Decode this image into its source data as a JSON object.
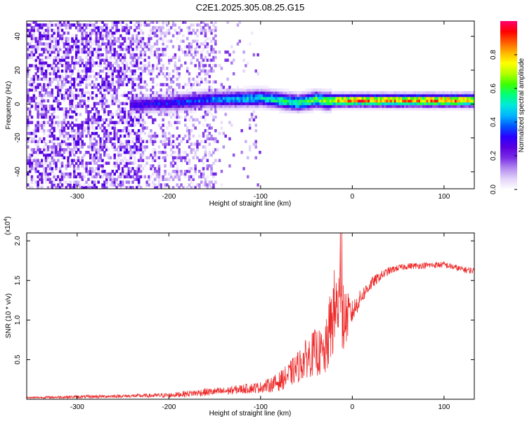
{
  "title": "C2E1.2025.305.08.25.G15",
  "chart_data": [
    {
      "type": "heatmap",
      "name": "spectrogram",
      "xlabel": "Height of straight line (km)",
      "ylabel": "Frequency (Hz)",
      "xlim": [
        -355,
        133
      ],
      "ylim": [
        -50,
        49
      ],
      "xticks": [
        -300,
        -200,
        -100,
        0,
        100
      ],
      "yticks": [
        -40,
        -20,
        0,
        20,
        40
      ],
      "colorbar": {
        "label": "Normalized spectral amplitude",
        "range": [
          0,
          1
        ],
        "ticks": [
          0.0,
          0.2,
          0.4,
          0.6,
          0.8
        ],
        "colors": [
          "#ffffff",
          "#e2d3fa",
          "#b48cf0",
          "#7a2ee6",
          "#5a00e0",
          "#2a00ff",
          "#0055ff",
          "#00b4ff",
          "#00e8dc",
          "#00ff7a",
          "#3cff00",
          "#b4ff00",
          "#ffff00",
          "#ffb400",
          "#ff5a00",
          "#ff0000",
          "#ff006e"
        ]
      },
      "ridge": {
        "x": [
          -240,
          -200,
          -160,
          -120,
          -100,
          -80,
          -60,
          -40,
          -28,
          -20,
          0,
          50,
          100,
          133
        ],
        "center_hz": [
          -1,
          0,
          2,
          2.5,
          3,
          1.5,
          0,
          2,
          1,
          1.5,
          1.5,
          1.5,
          1.5,
          1.5
        ],
        "peak_amplitude": [
          0.3,
          0.35,
          0.4,
          0.5,
          0.55,
          0.6,
          0.6,
          0.65,
          0.7,
          0.85,
          0.9,
          0.92,
          0.95,
          0.9
        ]
      }
    },
    {
      "type": "line",
      "name": "snr",
      "xlabel": "Height of straight line (km)",
      "ylabel": "SNR (10 * v/v)",
      "multiplier_label": "(x10",
      "multiplier_exp": "4",
      "multiplier_close": ")",
      "xlim": [
        -355,
        133
      ],
      "ylim": [
        0,
        2.1
      ],
      "xticks": [
        -300,
        -200,
        -100,
        0,
        100
      ],
      "yticks": [
        0.5,
        1.0,
        1.5,
        2.0
      ],
      "ytick_labels": [
        "0.5",
        "1.0",
        "1.5",
        "2.0"
      ],
      "color": "#ee2a2a",
      "series": {
        "x": [
          -355,
          -300,
          -250,
          -200,
          -180,
          -160,
          -140,
          -120,
          -100,
          -90,
          -80,
          -70,
          -60,
          -50,
          -40,
          -30,
          -25,
          -20,
          -15,
          -12,
          -10,
          0,
          10,
          20,
          30,
          40,
          50,
          60,
          80,
          100,
          120,
          133
        ],
        "y": [
          0.02,
          0.03,
          0.04,
          0.05,
          0.07,
          0.09,
          0.1,
          0.13,
          0.15,
          0.18,
          0.22,
          0.3,
          0.4,
          0.52,
          0.6,
          0.55,
          0.85,
          1.1,
          1.2,
          1.35,
          1.0,
          1.1,
          1.3,
          1.45,
          1.55,
          1.62,
          1.66,
          1.68,
          1.69,
          1.7,
          1.64,
          1.62
        ],
        "noise": [
          0.01,
          0.02,
          0.02,
          0.03,
          0.04,
          0.05,
          0.05,
          0.06,
          0.07,
          0.09,
          0.12,
          0.15,
          0.2,
          0.25,
          0.3,
          0.3,
          0.45,
          0.55,
          0.5,
          0.6,
          0.45,
          0.15,
          0.1,
          0.08,
          0.06,
          0.05,
          0.04,
          0.04,
          0.04,
          0.04,
          0.04,
          0.04
        ]
      }
    }
  ]
}
